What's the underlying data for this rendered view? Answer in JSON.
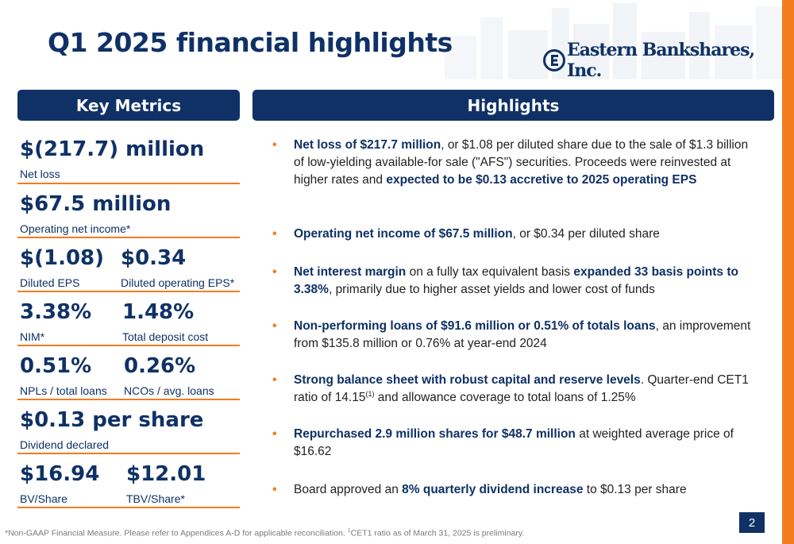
{
  "slide": {
    "title": "Q1 2025 financial highlights",
    "page_number": "2"
  },
  "logo": {
    "text": "Eastern Bankshares, Inc."
  },
  "key_metrics": {
    "heading": "Key Metrics",
    "rows": [
      {
        "items": [
          {
            "value": "$(217.7) million",
            "label": "Net loss"
          }
        ]
      },
      {
        "items": [
          {
            "value": "$67.5 million",
            "label": "Operating net income*"
          }
        ]
      },
      {
        "items": [
          {
            "value": "$(1.08)",
            "label": "Diluted EPS"
          },
          {
            "value": "$0.34",
            "label": "Diluted operating EPS*"
          }
        ]
      },
      {
        "items": [
          {
            "value": "3.38%",
            "label": "NIM*"
          },
          {
            "value": "1.48%",
            "label": "Total deposit cost"
          }
        ]
      },
      {
        "items": [
          {
            "value": "0.51%",
            "label": "NPLs / total loans"
          },
          {
            "value": "0.26%",
            "label": "NCOs / avg. loans"
          }
        ]
      },
      {
        "items": [
          {
            "value": "$0.13 per share",
            "label": "Dividend declared"
          }
        ]
      },
      {
        "items": [
          {
            "value": "$16.94",
            "label": "BV/Share"
          },
          {
            "value": "$12.01",
            "label": "TBV/Share*"
          }
        ]
      }
    ]
  },
  "highlights": {
    "heading": "Highlights",
    "bullets": [
      {
        "segments": [
          {
            "text": "Net loss of $217.7 million",
            "bold": true
          },
          {
            "text": ", or $1.08 per diluted share due to the sale of $1.3 billion of low-yielding available-for sale (\"AFS\") securities. Proceeds were reinvested at higher rates and "
          },
          {
            "text": "expected to be $0.13 accretive to 2025 operating EPS",
            "bold": true
          }
        ]
      },
      {
        "segments": [
          {
            "text": "Operating net income of $67.5 million",
            "bold": true
          },
          {
            "text": ", or $0.34 per diluted share"
          }
        ]
      },
      {
        "segments": [
          {
            "text": "Net interest margin",
            "bold": true
          },
          {
            "text": " on a fully tax equivalent basis "
          },
          {
            "text": "expanded 33 basis points to 3.38%",
            "bold": true
          },
          {
            "text": ", primarily due to higher asset yields and lower cost of funds"
          }
        ]
      },
      {
        "segments": [
          {
            "text": "Non-performing loans of $91.6 million or 0.51% of totals loans",
            "bold": true
          },
          {
            "text": ", an improvement from $135.8 million or 0.76% at year-end 2024"
          }
        ]
      },
      {
        "segments": [
          {
            "text": "Strong balance sheet with robust capital and reserve levels",
            "bold": true
          },
          {
            "text": ". Quarter-end CET1 ratio of 14.15"
          },
          {
            "text": "(1)",
            "sup": true
          },
          {
            "text": " and allowance coverage to total loans of 1.25%"
          }
        ]
      },
      {
        "segments": [
          {
            "text": "Repurchased 2.9 million shares for $48.7 million",
            "bold": true
          },
          {
            "text": " at weighted average price of $16.62"
          }
        ]
      },
      {
        "segments": [
          {
            "text": "Board approved an "
          },
          {
            "text": "8% quarterly dividend increase",
            "bold": true
          },
          {
            "text": " to $0.13 per share"
          }
        ]
      }
    ]
  },
  "footnote": {
    "part1": "*Non-GAAP Financial Measure. Please refer to Appendices A-D for applicable reconciliation.  ",
    "sup": "1",
    "part2": "CET1 ratio as of March 31, 2025 is preliminary."
  },
  "colors": {
    "navy": "#0f3166",
    "orange": "#f47c20"
  }
}
